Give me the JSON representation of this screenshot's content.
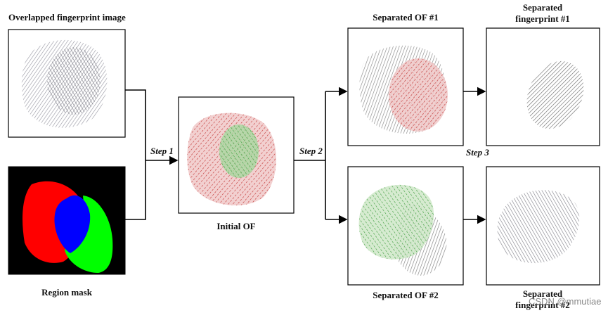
{
  "nodes": [
    {
      "label": "Overlapped fingerprint image"
    },
    {
      "label": "Region mask"
    },
    {
      "label": "Initial OF"
    },
    {
      "label": "Separated OF #1"
    },
    {
      "label": "Separated OF #2"
    },
    {
      "label": "Separated fingerprint #1"
    },
    {
      "label": "Separated fingerprint #2"
    }
  ],
  "steps": [
    "Step 1",
    "Step 2",
    "Step 3"
  ],
  "watermark": "CSDN @mmutiae"
}
